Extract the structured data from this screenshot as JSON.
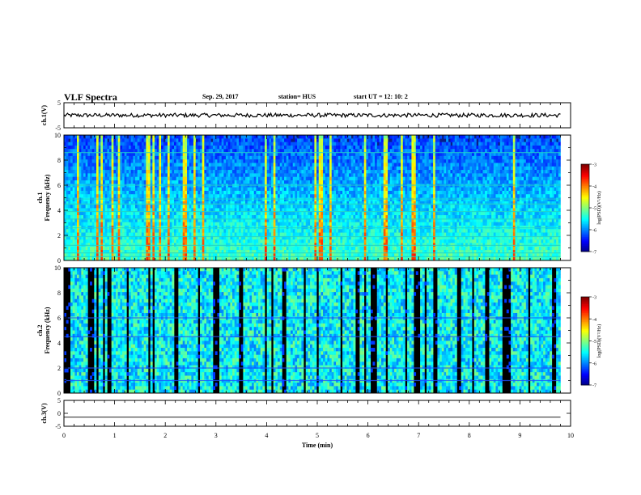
{
  "header": {
    "title": "VLF Spectra",
    "date": "Sep. 29, 2017",
    "station": "station= HUS",
    "start_ut": "start  UT =   12: 10: 2"
  },
  "chart_data": {
    "type": "heatmap",
    "xlabel": "Time  (min)",
    "xlim": [
      0,
      10
    ],
    "xticks": [
      "0",
      "1",
      "2",
      "3",
      "4",
      "5",
      "6",
      "7",
      "8",
      "9",
      "10"
    ],
    "panels": [
      {
        "id": "ch1-waveform",
        "type": "line",
        "ylabel": "ch.1(V)",
        "ylim": [
          -5,
          5
        ],
        "yticks": [
          "5",
          "-5"
        ],
        "level": 0,
        "t_end": 9.8
      },
      {
        "id": "ch1-spectrogram",
        "type": "heatmap",
        "ylabel_top": "ch.1",
        "ylabel": "Frequency  (kHz)",
        "ylim": [
          0,
          10
        ],
        "yticks": [
          "0",
          "2",
          "4",
          "6",
          "8",
          "10"
        ],
        "t_end": 9.8,
        "colorbar": {
          "label": "log(PSD)(V²/Hz)",
          "range": [
            -7,
            -3
          ],
          "ticks": [
            "-3",
            "-4",
            "-5",
            "-6",
            "-7"
          ]
        }
      },
      {
        "id": "ch2-spectrogram",
        "type": "heatmap",
        "ylabel_top": "ch.2",
        "ylabel": "Frequency  (kHz)",
        "ylim": [
          0,
          10
        ],
        "yticks": [
          "0",
          "2",
          "4",
          "6",
          "8",
          "10"
        ],
        "t_end": 9.8,
        "colorbar": {
          "label": "log(PSD)(V²/Hz)",
          "range": [
            -7,
            -3
          ],
          "ticks": [
            "-3",
            "-4",
            "-5",
            "-6",
            "-7"
          ]
        }
      },
      {
        "id": "ch3-waveform",
        "type": "line",
        "ylabel": "ch.3(V)",
        "ylim": [
          -5,
          5
        ],
        "yticks": [
          "5",
          "0",
          "-5"
        ],
        "level": -1.5,
        "t_end": 9.8
      }
    ]
  }
}
